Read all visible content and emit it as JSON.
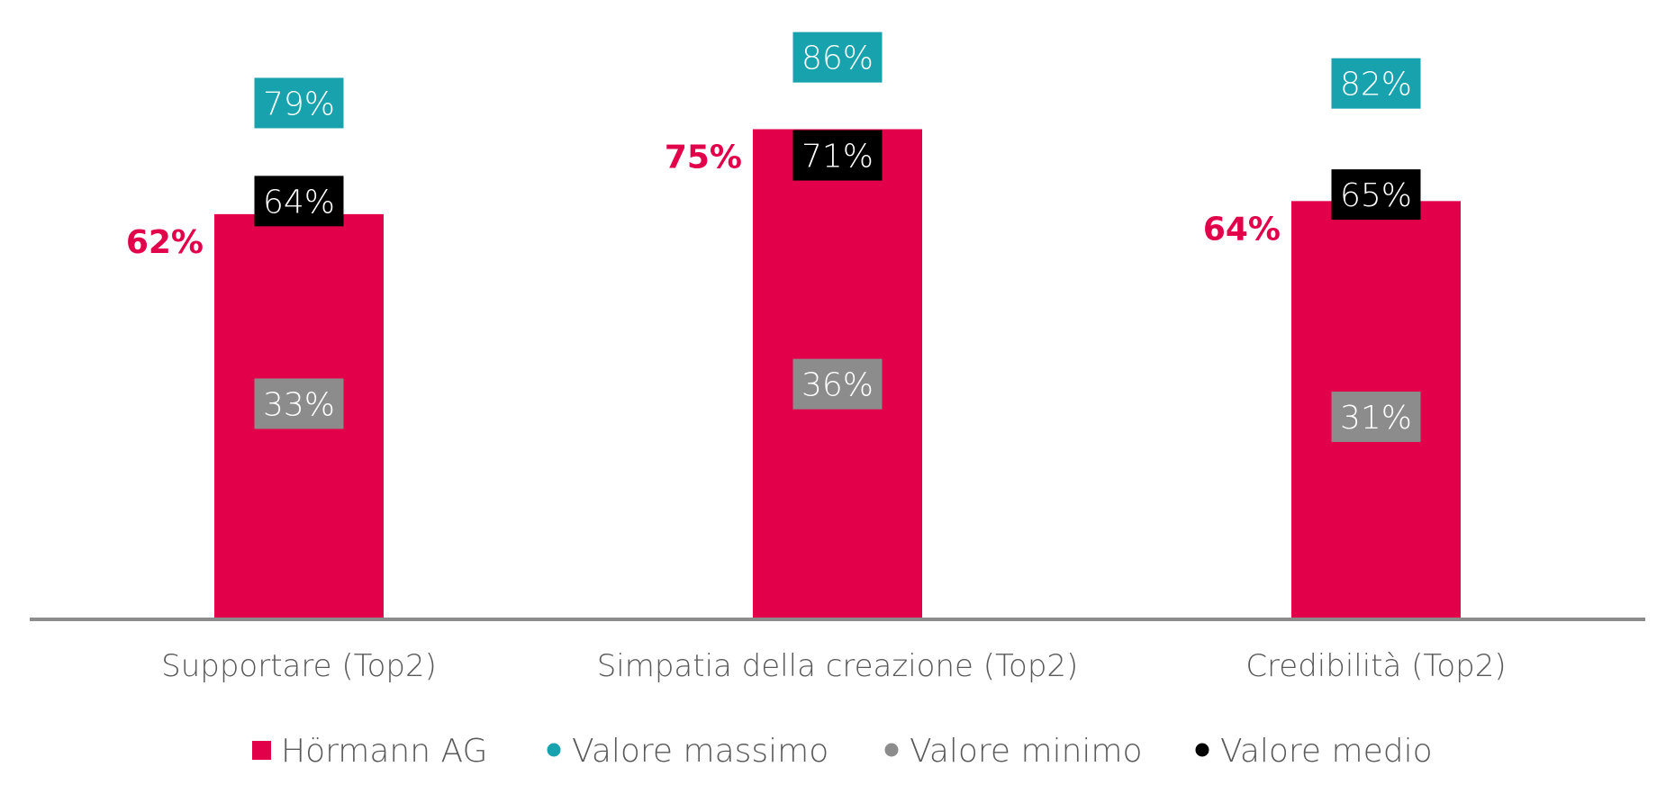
{
  "chart_data": {
    "type": "bar",
    "title": "",
    "xlabel": "",
    "ylabel": "",
    "ylim": [
      0,
      100
    ],
    "grid": false,
    "legend_position": "bottom",
    "categories": [
      "Supportare (Top2)",
      "Simpatia della creazione (Top2)",
      "Credibilità (Top2)"
    ],
    "series": [
      {
        "name": "Hörmann AG",
        "kind": "bar",
        "color": "#e2004a",
        "values": [
          62,
          75,
          64
        ],
        "labels": [
          "62%",
          "75%",
          "64%"
        ]
      },
      {
        "name": "Valore massimo",
        "kind": "marker",
        "color": "#17a2ae",
        "values": [
          79,
          86,
          82
        ],
        "labels": [
          "79%",
          "86%",
          "82%"
        ]
      },
      {
        "name": "Valore minimo",
        "kind": "marker",
        "color": "#8c8c8c",
        "values": [
          33,
          36,
          31
        ],
        "labels": [
          "33%",
          "36%",
          "31%"
        ]
      },
      {
        "name": "Valore medio",
        "kind": "marker",
        "color": "#000000",
        "values": [
          64,
          71,
          65
        ],
        "labels": [
          "64%",
          "71%",
          "65%"
        ]
      }
    ],
    "axis_color": "#8c8c8c",
    "text_color": "#595959"
  }
}
